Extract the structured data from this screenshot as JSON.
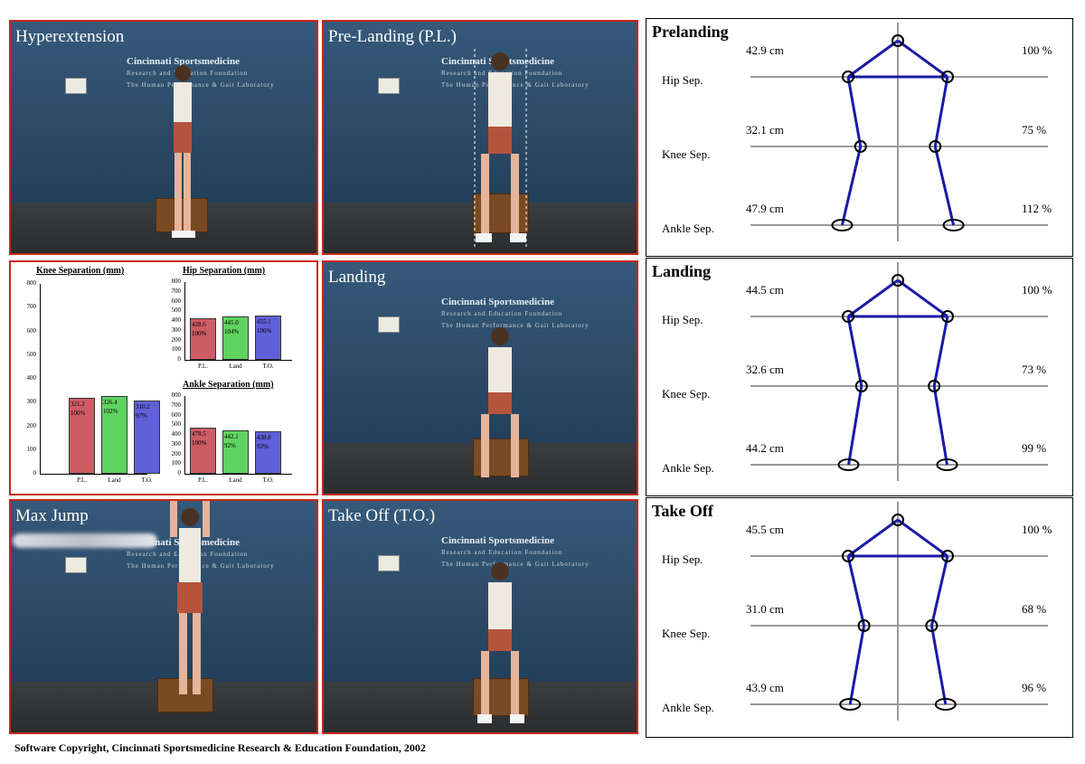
{
  "photos": [
    {
      "title": "Hyperextension"
    },
    {
      "title": "Pre-Landing (P.L.)"
    },
    {
      "title": "Landing"
    },
    {
      "title": "Max Jump"
    },
    {
      "title": "Take Off (T.O.)"
    }
  ],
  "logo": {
    "line1": "Cincinnati Sportsmedicine",
    "line2": "Research and Education Foundation",
    "line3": "The Human Performance & Gait Laboratory"
  },
  "chart_data": [
    {
      "type": "bar",
      "title": "Knee Separation (mm)",
      "categories": [
        "P.L.",
        "Land",
        "T.O."
      ],
      "values": [
        321.2,
        326.4,
        310.2
      ],
      "labels": [
        [
          "321.2",
          "100%"
        ],
        [
          "326.4",
          "102%"
        ],
        [
          "310.2",
          "97%"
        ]
      ],
      "colors": [
        "#cd5c64",
        "#5fd35f",
        "#6060d8"
      ],
      "ylim": [
        0,
        800
      ],
      "yticks": [
        "800",
        "700",
        "600",
        "500",
        "400",
        "300",
        "200",
        "100",
        "0"
      ]
    },
    {
      "type": "bar",
      "title": "Hip Separation (mm)",
      "categories": [
        "P.L.",
        "Land",
        "T.O."
      ],
      "values": [
        428.6,
        445.0,
        455.1
      ],
      "labels": [
        [
          "428.6",
          "100%"
        ],
        [
          "445.0",
          "104%"
        ],
        [
          "455.1",
          "106%"
        ]
      ],
      "colors": [
        "#cd5c64",
        "#5fd35f",
        "#6060d8"
      ],
      "ylim": [
        0,
        800
      ],
      "yticks": [
        "800",
        "700",
        "600",
        "500",
        "400",
        "300",
        "200",
        "100",
        "0"
      ]
    },
    {
      "type": "bar",
      "title": "Ankle Separation (mm)",
      "categories": [
        "P.L.",
        "Land",
        "T.O."
      ],
      "values": [
        478.5,
        442.1,
        438.8
      ],
      "labels": [
        [
          "478.5",
          "100%"
        ],
        [
          "442.1",
          "92%"
        ],
        [
          "438.8",
          "92%"
        ]
      ],
      "colors": [
        "#cd5c64",
        "#5fd35f",
        "#6060d8"
      ],
      "ylim": [
        0,
        800
      ],
      "yticks": [
        "800",
        "700",
        "600",
        "500",
        "400",
        "300",
        "200",
        "100",
        "0"
      ]
    }
  ],
  "diagrams": [
    {
      "title": "Prelanding",
      "hip_cm": "42.9 cm",
      "hip_pct": "100 %",
      "knee_cm": "32.1 cm",
      "knee_pct": "75 %",
      "ankle_cm": "47.9 cm",
      "ankle_pct": "112 %",
      "hip_label": "Hip Sep.",
      "knee_label": "Knee Sep.",
      "ankle_label": "Ankle Sep.",
      "knee_ratio": 0.75,
      "ankle_ratio": 1.12
    },
    {
      "title": "Landing",
      "hip_cm": "44.5 cm",
      "hip_pct": "100 %",
      "knee_cm": "32.6 cm",
      "knee_pct": "73 %",
      "ankle_cm": "44.2 cm",
      "ankle_pct": "99 %",
      "hip_label": "Hip Sep.",
      "knee_label": "Knee Sep.",
      "ankle_label": "Ankle Sep.",
      "knee_ratio": 0.73,
      "ankle_ratio": 0.99
    },
    {
      "title": "Take Off",
      "hip_cm": "45.5 cm",
      "hip_pct": "100 %",
      "knee_cm": "31.0 cm",
      "knee_pct": "68 %",
      "ankle_cm": "43.9 cm",
      "ankle_pct": "96 %",
      "hip_label": "Hip Sep.",
      "knee_label": "Knee Sep.",
      "ankle_label": "Ankle Sep.",
      "knee_ratio": 0.68,
      "ankle_ratio": 0.96
    }
  ],
  "copyright": "Software Copyright, Cincinnati Sportsmedicine Research & Education Foundation, 2002",
  "colors": {
    "frame_red": "#c8261e",
    "skeleton_blue": "#1a1aa8",
    "grid_gray": "#9a9a9a"
  }
}
